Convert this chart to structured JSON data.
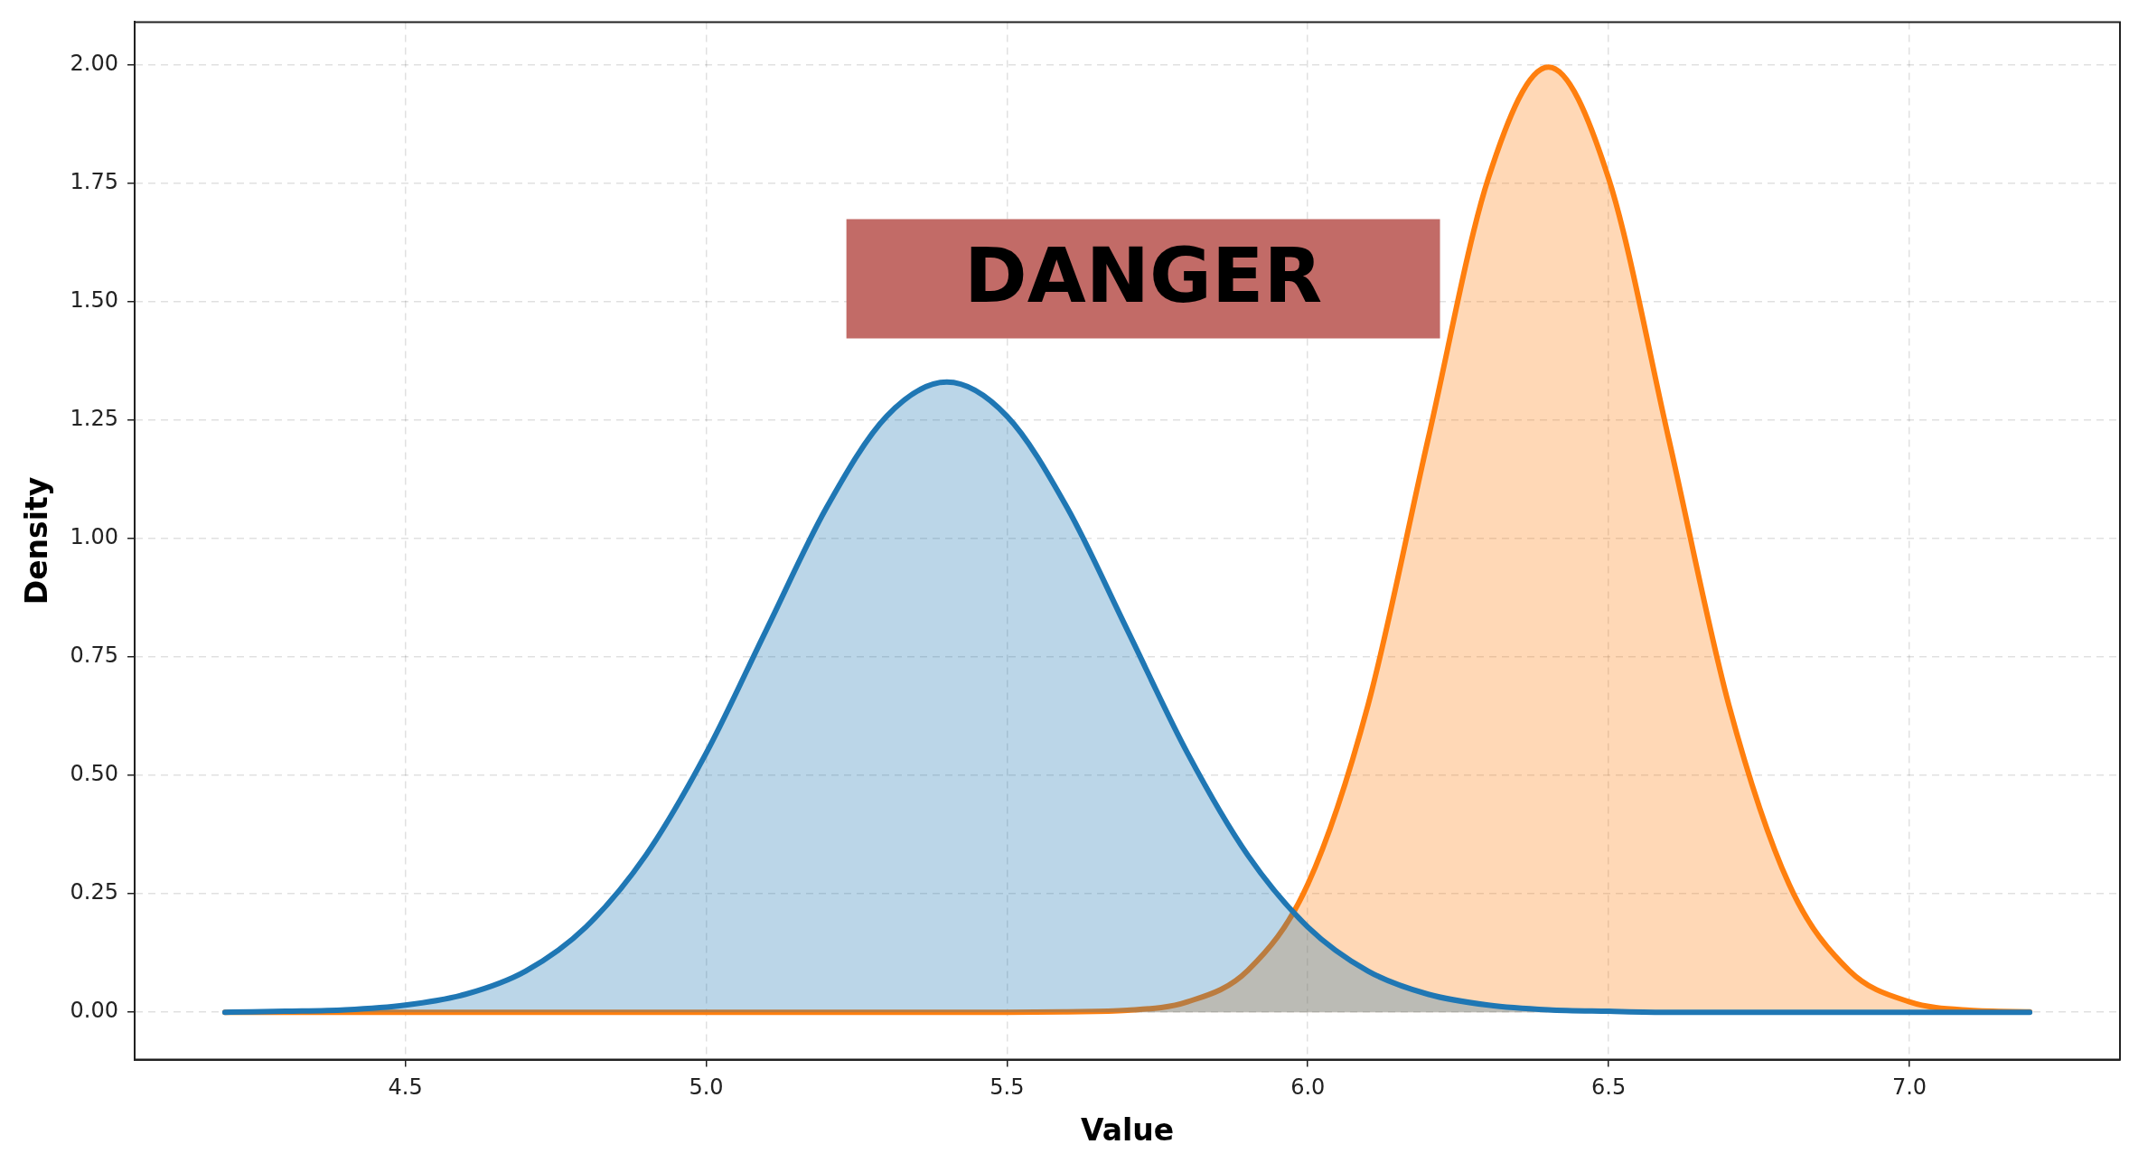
{
  "chart_data": {
    "type": "area",
    "xlabel": "Value",
    "ylabel": "Density",
    "annotations": [
      "DANGER"
    ],
    "x": [
      4.2,
      4.3,
      4.4,
      4.5,
      4.6,
      4.7,
      4.8,
      4.9,
      5.0,
      5.1,
      5.2,
      5.3,
      5.4,
      5.5,
      5.6,
      5.7,
      5.8,
      5.9,
      6.0,
      6.1,
      6.2,
      6.3,
      6.4,
      6.5,
      6.6,
      6.7,
      6.8,
      6.9,
      7.0,
      7.1,
      7.2
    ],
    "series": [
      {
        "color": "#1f77b4",
        "values": [
          0.0,
          0.002,
          0.005,
          0.015,
          0.038,
          0.087,
          0.18,
          0.332,
          0.547,
          0.807,
          1.065,
          1.258,
          1.33,
          1.258,
          1.065,
          0.807,
          0.547,
          0.332,
          0.18,
          0.087,
          0.038,
          0.015,
          0.005,
          0.002,
          0.0,
          0.0,
          0.0,
          0.0,
          0.0,
          0.0,
          0.0
        ]
      },
      {
        "color": "#ff7f0e",
        "values": [
          0.0,
          0.0,
          0.0,
          0.0,
          0.0,
          0.0,
          0.0,
          0.0,
          0.0,
          0.0,
          0.0,
          0.0,
          0.0,
          0.0,
          0.001,
          0.004,
          0.022,
          0.088,
          0.27,
          0.648,
          1.21,
          1.76,
          1.995,
          1.76,
          1.21,
          0.648,
          0.27,
          0.088,
          0.022,
          0.004,
          0.001
        ]
      }
    ],
    "xlim": [
      4.05,
      7.35
    ],
    "xticks": [
      4.5,
      {
        "value": 5.0,
        "label": "5.0"
      },
      5.5,
      {
        "value": 6.0,
        "label": "6.0"
      },
      6.5,
      {
        "value": 7.0,
        "label": "7.0"
      }
    ],
    "ylim": [
      -0.1,
      2.09
    ],
    "yticks": [
      {
        "value": 0,
        "label": "0.00"
      },
      {
        "value": 0.25,
        "label": "0.25"
      },
      {
        "value": 0.5,
        "label": "0.50"
      },
      {
        "value": 0.75,
        "label": "0.75"
      },
      {
        "value": 1.0,
        "label": "1.00"
      },
      {
        "value": 1.25,
        "label": "1.25"
      },
      {
        "value": 1.5,
        "label": "1.50"
      },
      {
        "value": 1.75,
        "label": "1.75"
      },
      {
        "value": 2.0,
        "label": "2.00"
      }
    ],
    "grid": true,
    "legend": false,
    "line_style": "solid",
    "marker": "none"
  }
}
